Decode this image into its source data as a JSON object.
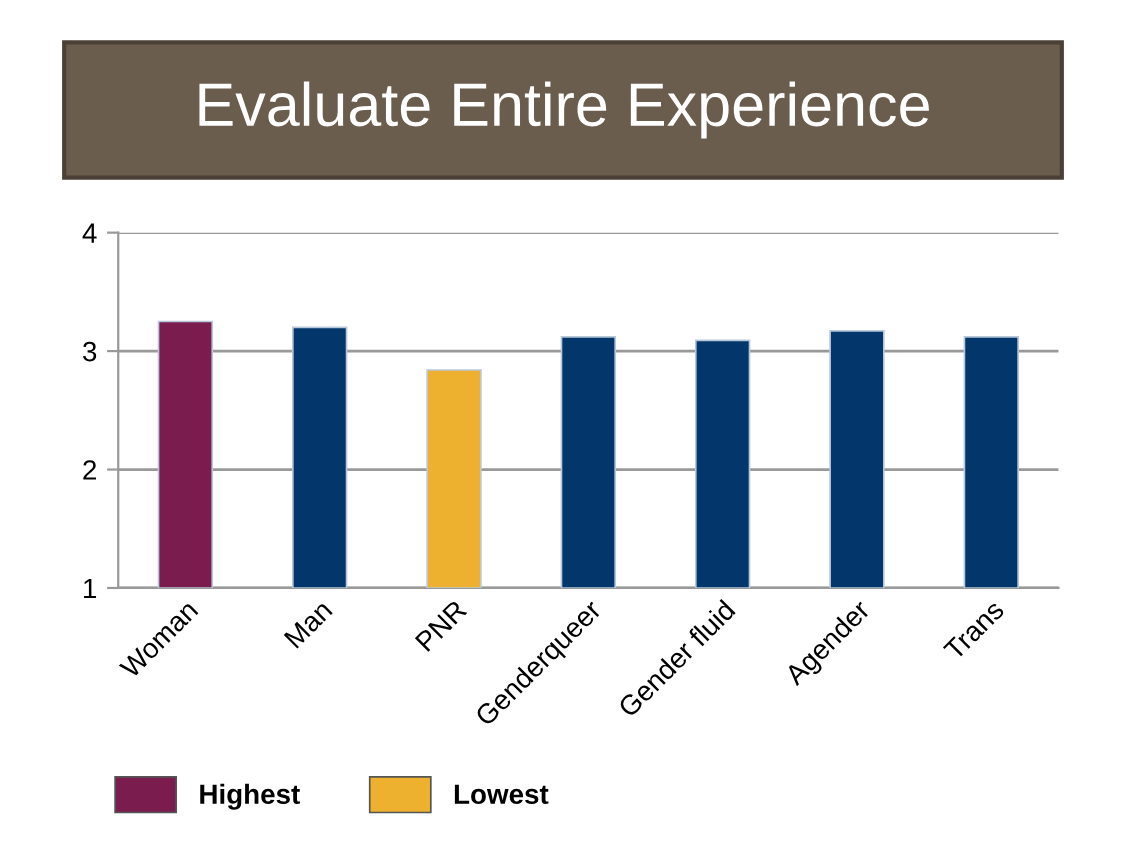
{
  "chart_data": {
    "type": "bar",
    "title": "Evaluate Entire Experience",
    "categories": [
      "Woman",
      "Man",
      "PNR",
      "Genderqueer",
      "Gender fluid",
      "Agender",
      "Trans"
    ],
    "series": [
      {
        "name": "Highest",
        "color": "#7b1c4f",
        "values": [
          3.25,
          null,
          null,
          null,
          null,
          null,
          null
        ]
      },
      {
        "name": "Lowest",
        "color": "#edb12f",
        "values": [
          null,
          null,
          2.84,
          null,
          null,
          null,
          null
        ]
      },
      {
        "color": "#03376b",
        "values": [
          null,
          3.2,
          null,
          3.12,
          3.09,
          3.17,
          3.12
        ]
      }
    ],
    "ylim": [
      1,
      4
    ],
    "yticks": [
      1,
      2,
      3,
      4
    ],
    "grid": "y",
    "legend": "bottom left"
  }
}
